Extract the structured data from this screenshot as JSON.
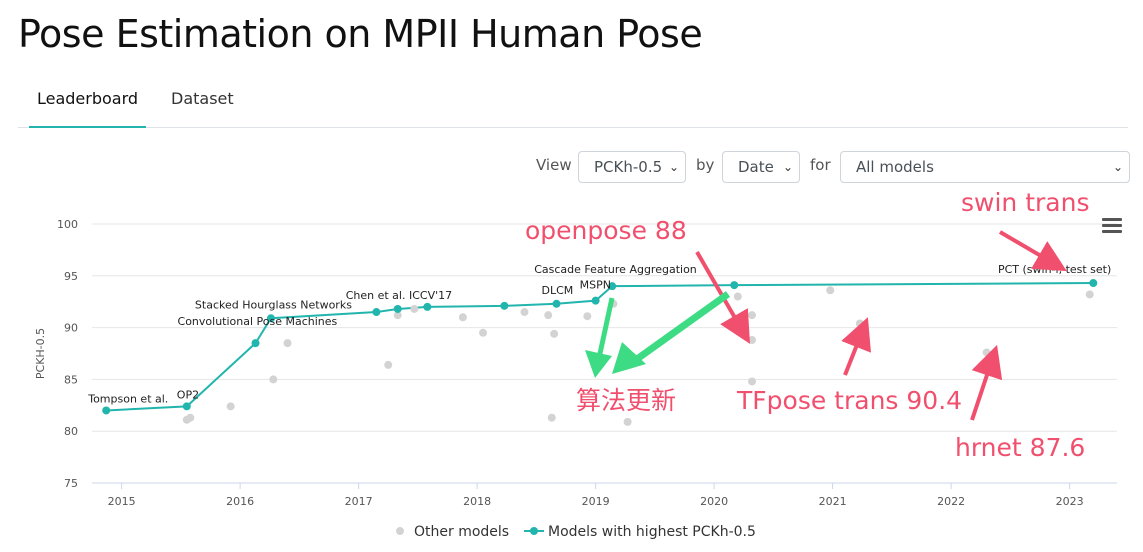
{
  "page": {
    "title": "Pose Estimation on MPII Human Pose"
  },
  "tabs": [
    {
      "label": "Leaderboard",
      "active": true
    },
    {
      "label": "Dataset",
      "active": false
    }
  ],
  "filters": {
    "view_label": "View",
    "view_value": "PCKh-0.5",
    "by_label": "by",
    "by_value": "Date",
    "for_label": "for",
    "for_value": "All models"
  },
  "menu_icon": "hamburger-menu-icon",
  "colors": {
    "accent": "#21b5ad",
    "other": "#d3d3d3",
    "annotation": "#f0506e",
    "arrow_green": "#3ddc84"
  },
  "chart_data": {
    "type": "scatter",
    "ylabel": "PCKH-0.5",
    "xlim": [
      2014.75,
      2023.4
    ],
    "ylim": [
      75,
      100
    ],
    "x_ticks": [
      "2015",
      "2016",
      "2017",
      "2018",
      "2019",
      "2020",
      "2021",
      "2022",
      "2023"
    ],
    "y_ticks": [
      75,
      80,
      85,
      90,
      95,
      100
    ],
    "grid": true,
    "legend_position": "bottom",
    "series": [
      {
        "name": "Models with highest PCKh-0.5",
        "points": [
          {
            "x": 2014.87,
            "y": 82.0,
            "label": "Tompson et al."
          },
          {
            "x": 2015.55,
            "y": 82.4,
            "label": "OP2"
          },
          {
            "x": 2016.13,
            "y": 88.5,
            "label": "Convolutional Pose Machines"
          },
          {
            "x": 2016.26,
            "y": 90.9,
            "label": "Stacked Hourglass Networks"
          },
          {
            "x": 2017.15,
            "y": 91.5,
            "label": ""
          },
          {
            "x": 2017.33,
            "y": 91.8,
            "label": "Chen et al. ICCV'17"
          },
          {
            "x": 2017.58,
            "y": 92.0,
            "label": ""
          },
          {
            "x": 2018.23,
            "y": 92.1,
            "label": ""
          },
          {
            "x": 2018.67,
            "y": 92.3,
            "label": "DLCM"
          },
          {
            "x": 2019.0,
            "y": 92.6,
            "label": "MSPN"
          },
          {
            "x": 2019.14,
            "y": 94.0,
            "label": "Cascade Feature Aggregation"
          },
          {
            "x": 2020.17,
            "y": 94.1,
            "label": ""
          },
          {
            "x": 2023.2,
            "y": 94.3,
            "label": "PCT (swin-l, test set)"
          }
        ]
      },
      {
        "name": "Other models",
        "points": [
          {
            "x": 2015.55,
            "y": 81.1
          },
          {
            "x": 2015.58,
            "y": 81.3
          },
          {
            "x": 2015.92,
            "y": 82.4
          },
          {
            "x": 2016.28,
            "y": 85.0
          },
          {
            "x": 2016.4,
            "y": 88.5
          },
          {
            "x": 2017.25,
            "y": 86.4
          },
          {
            "x": 2017.33,
            "y": 91.2
          },
          {
            "x": 2017.47,
            "y": 91.8
          },
          {
            "x": 2017.88,
            "y": 91.0
          },
          {
            "x": 2018.05,
            "y": 89.5
          },
          {
            "x": 2018.4,
            "y": 91.5
          },
          {
            "x": 2018.6,
            "y": 91.2
          },
          {
            "x": 2018.63,
            "y": 81.3
          },
          {
            "x": 2018.65,
            "y": 89.4
          },
          {
            "x": 2018.93,
            "y": 91.1
          },
          {
            "x": 2019.15,
            "y": 92.3
          },
          {
            "x": 2019.27,
            "y": 80.9
          },
          {
            "x": 2020.2,
            "y": 93.0
          },
          {
            "x": 2020.32,
            "y": 91.2
          },
          {
            "x": 2020.32,
            "y": 88.8
          },
          {
            "x": 2020.32,
            "y": 84.8
          },
          {
            "x": 2020.98,
            "y": 93.6
          },
          {
            "x": 2021.23,
            "y": 90.4
          },
          {
            "x": 2022.3,
            "y": 87.6
          },
          {
            "x": 2023.17,
            "y": 93.2
          }
        ]
      }
    ],
    "annotations": [
      {
        "text": "openpose 88",
        "color": "#f0506e"
      },
      {
        "text": "swin trans",
        "color": "#f0506e"
      },
      {
        "text": "算法更新",
        "color": "#f0506e"
      },
      {
        "text": "TFpose trans 90.4",
        "color": "#f0506e"
      },
      {
        "text": "hrnet 87.6",
        "color": "#f0506e"
      }
    ],
    "legend": [
      "Other models",
      "Models with highest PCKh-0.5"
    ]
  }
}
